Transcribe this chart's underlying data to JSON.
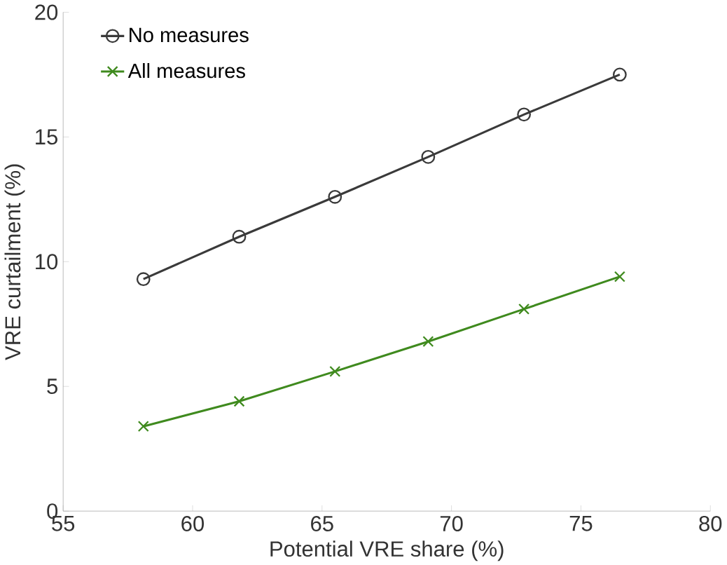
{
  "chart_data": {
    "type": "line",
    "xlabel": "Potential VRE share (%)",
    "ylabel": "VRE curtailment  (%)",
    "xlim": [
      55,
      80
    ],
    "xticks": [
      55,
      60,
      65,
      70,
      75,
      80
    ],
    "ylim": [
      0,
      20
    ],
    "yticks": [
      0,
      5,
      10,
      15,
      20
    ],
    "grid": false,
    "legend": "top left",
    "series": [
      {
        "name": "No measures",
        "color": "#3a3a3a",
        "marker": "circle",
        "x": [
          58.1,
          61.8,
          65.5,
          69.1,
          72.8,
          76.5
        ],
        "values": [
          9.3,
          11.0,
          12.6,
          14.2,
          15.9,
          17.5
        ]
      },
      {
        "name": "All measures",
        "color": "#3f8a1e",
        "marker": "cross",
        "x": [
          58.1,
          61.8,
          65.5,
          69.1,
          72.8,
          76.5
        ],
        "values": [
          3.4,
          4.4,
          5.6,
          6.8,
          8.1,
          9.4
        ]
      }
    ]
  }
}
